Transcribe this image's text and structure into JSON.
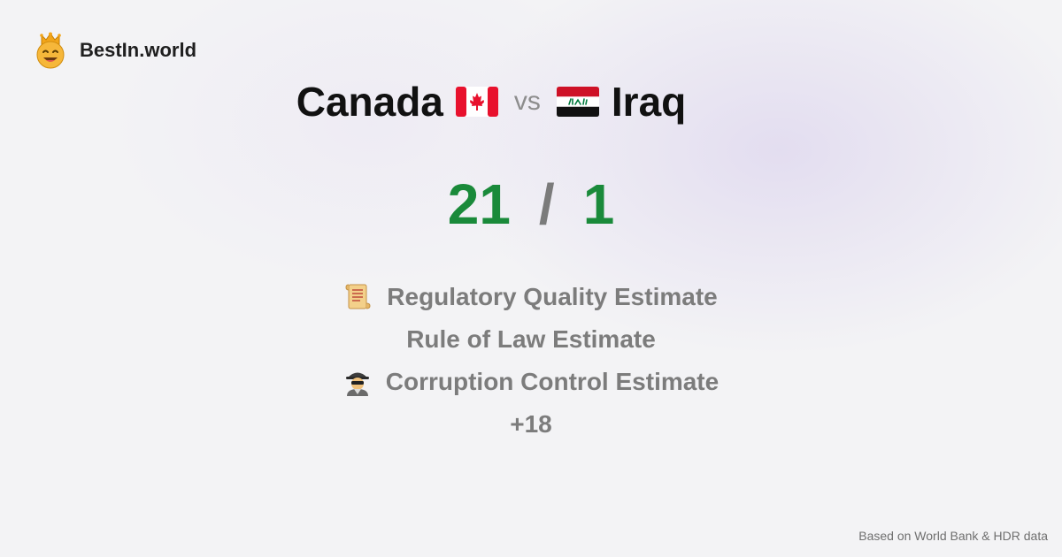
{
  "brand": {
    "name": "BestIn.world",
    "logo_icon": "crowned-smiley-icon"
  },
  "comparison": {
    "left": {
      "name": "Canada",
      "flag_icon": "canada-flag-icon"
    },
    "vs_label": "vs",
    "right": {
      "name": "Iraq",
      "flag_icon": "iraq-flag-icon"
    }
  },
  "score": {
    "left": "21",
    "separator": "/",
    "right": "1",
    "color": "#1a8a3a"
  },
  "metrics": [
    {
      "label": "Regulatory Quality Estimate",
      "icon": "scroll-icon"
    },
    {
      "label": "Rule of Law Estimate",
      "icon": ""
    },
    {
      "label": "Corruption Control Estimate",
      "icon": "detective-icon"
    }
  ],
  "more_count": "+18",
  "footer": {
    "source_text": "Based on World Bank & HDR data"
  }
}
